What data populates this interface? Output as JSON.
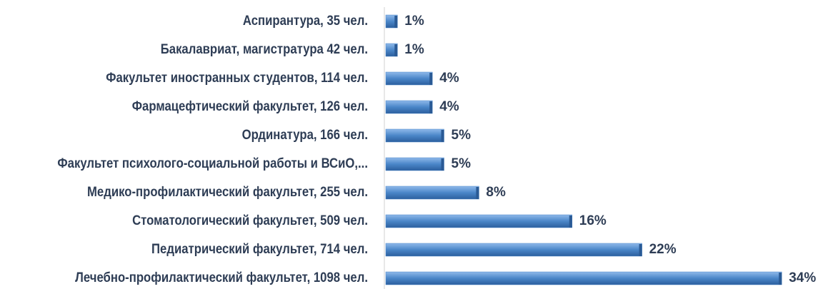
{
  "chart_data": {
    "type": "barh",
    "categories": [
      "Аспирантура, 35 чел.",
      "Бакалавриат,  магистратура 42 чел.",
      "Факультет иностранных студентов, 114 чел.",
      "Фармацефтический факультет, 126 чел.",
      "Ординатура, 166 чел.",
      "Факультет психолого-социальной работы  и ВСиО,...",
      "Медико-профилактический факультет, 255 чел.",
      "Стоматологический факультет, 509 чел.",
      "Педиатрический факультет, 714 чел.",
      "Лечебно-профилактический факультет, 1098 чел."
    ],
    "values": [
      1,
      1,
      4,
      4,
      5,
      5,
      8,
      16,
      22,
      34
    ],
    "value_labels": [
      "1%",
      "1%",
      "4%",
      "4%",
      "5%",
      "5%",
      "8%",
      "16%",
      "22%",
      "34%"
    ],
    "color": "#4a86c8"
  }
}
